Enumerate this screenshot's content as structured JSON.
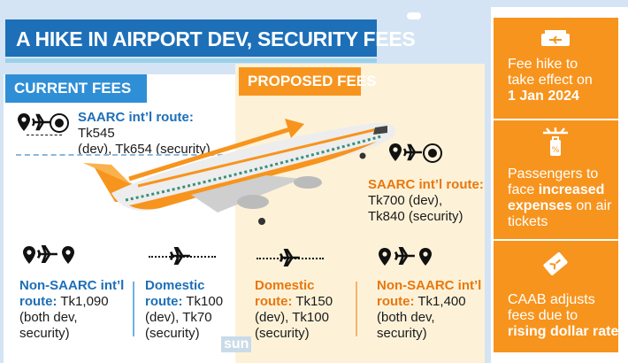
{
  "title": "A HIKE IN AIRPORT DEV, SECURITY FEES",
  "current": {
    "heading": "CURRENT FEES",
    "saarc_label": "SAARC int’l route:",
    "saarc_value_1": " Tk545",
    "saarc_value_2": "(dev), Tk654 (security)",
    "nonsaarc_line1": "Non-SAARC int’l",
    "nonsaarc_line2": "route:",
    "nonsaarc_value_1": " Tk1,090",
    "nonsaarc_value_2": "(both dev,",
    "nonsaarc_value_3": "security)",
    "domestic_label": "Domestic",
    "domestic_line2": "route:",
    "domestic_value_1": " Tk100",
    "domestic_value_2": "(dev), Tk70",
    "domestic_value_3": "(security)"
  },
  "proposed": {
    "heading": "PROPOSED FEES",
    "saarc_label": "SAARC int’l route:",
    "saarc_value_1": "Tk700 (dev),",
    "saarc_value_2": "Tk840 (security)",
    "domestic_label": "Domestic",
    "domestic_line2": "route:",
    "domestic_value_1": " Tk150",
    "domestic_value_2": "(dev), Tk100",
    "domestic_value_3": "(security)",
    "nonsaarc_line1": "Non-SAARC int’l",
    "nonsaarc_line2": "route:",
    "nonsaarc_value_1": " Tk1,400",
    "nonsaarc_value_2": "(both dev,",
    "nonsaarc_value_3": "security)"
  },
  "sidebar": {
    "box1_line1": "Fee hike to",
    "box1_line2": "take effect on",
    "box1_bold": "1 Jan 2024",
    "box2_line1": "Passengers to",
    "box2_line2": "face ",
    "box2_bold1": "increased",
    "box2_bold2": "expenses",
    "box2_line3": " on air",
    "box2_line4": "tickets",
    "box3_line1": "CAAB adjusts",
    "box3_line2": "fees due to",
    "box3_bold": "rising dollar rate"
  },
  "logo": "sun",
  "colors": {
    "blue": "#1d6fb8",
    "orange": "#f7941d",
    "cream": "#fdf2d8"
  },
  "icons": [
    "location-pin-icon",
    "airplane-icon",
    "lion-emblem-icon",
    "ticket-icon",
    "luggage-icon",
    "ticket-tag-icon"
  ]
}
